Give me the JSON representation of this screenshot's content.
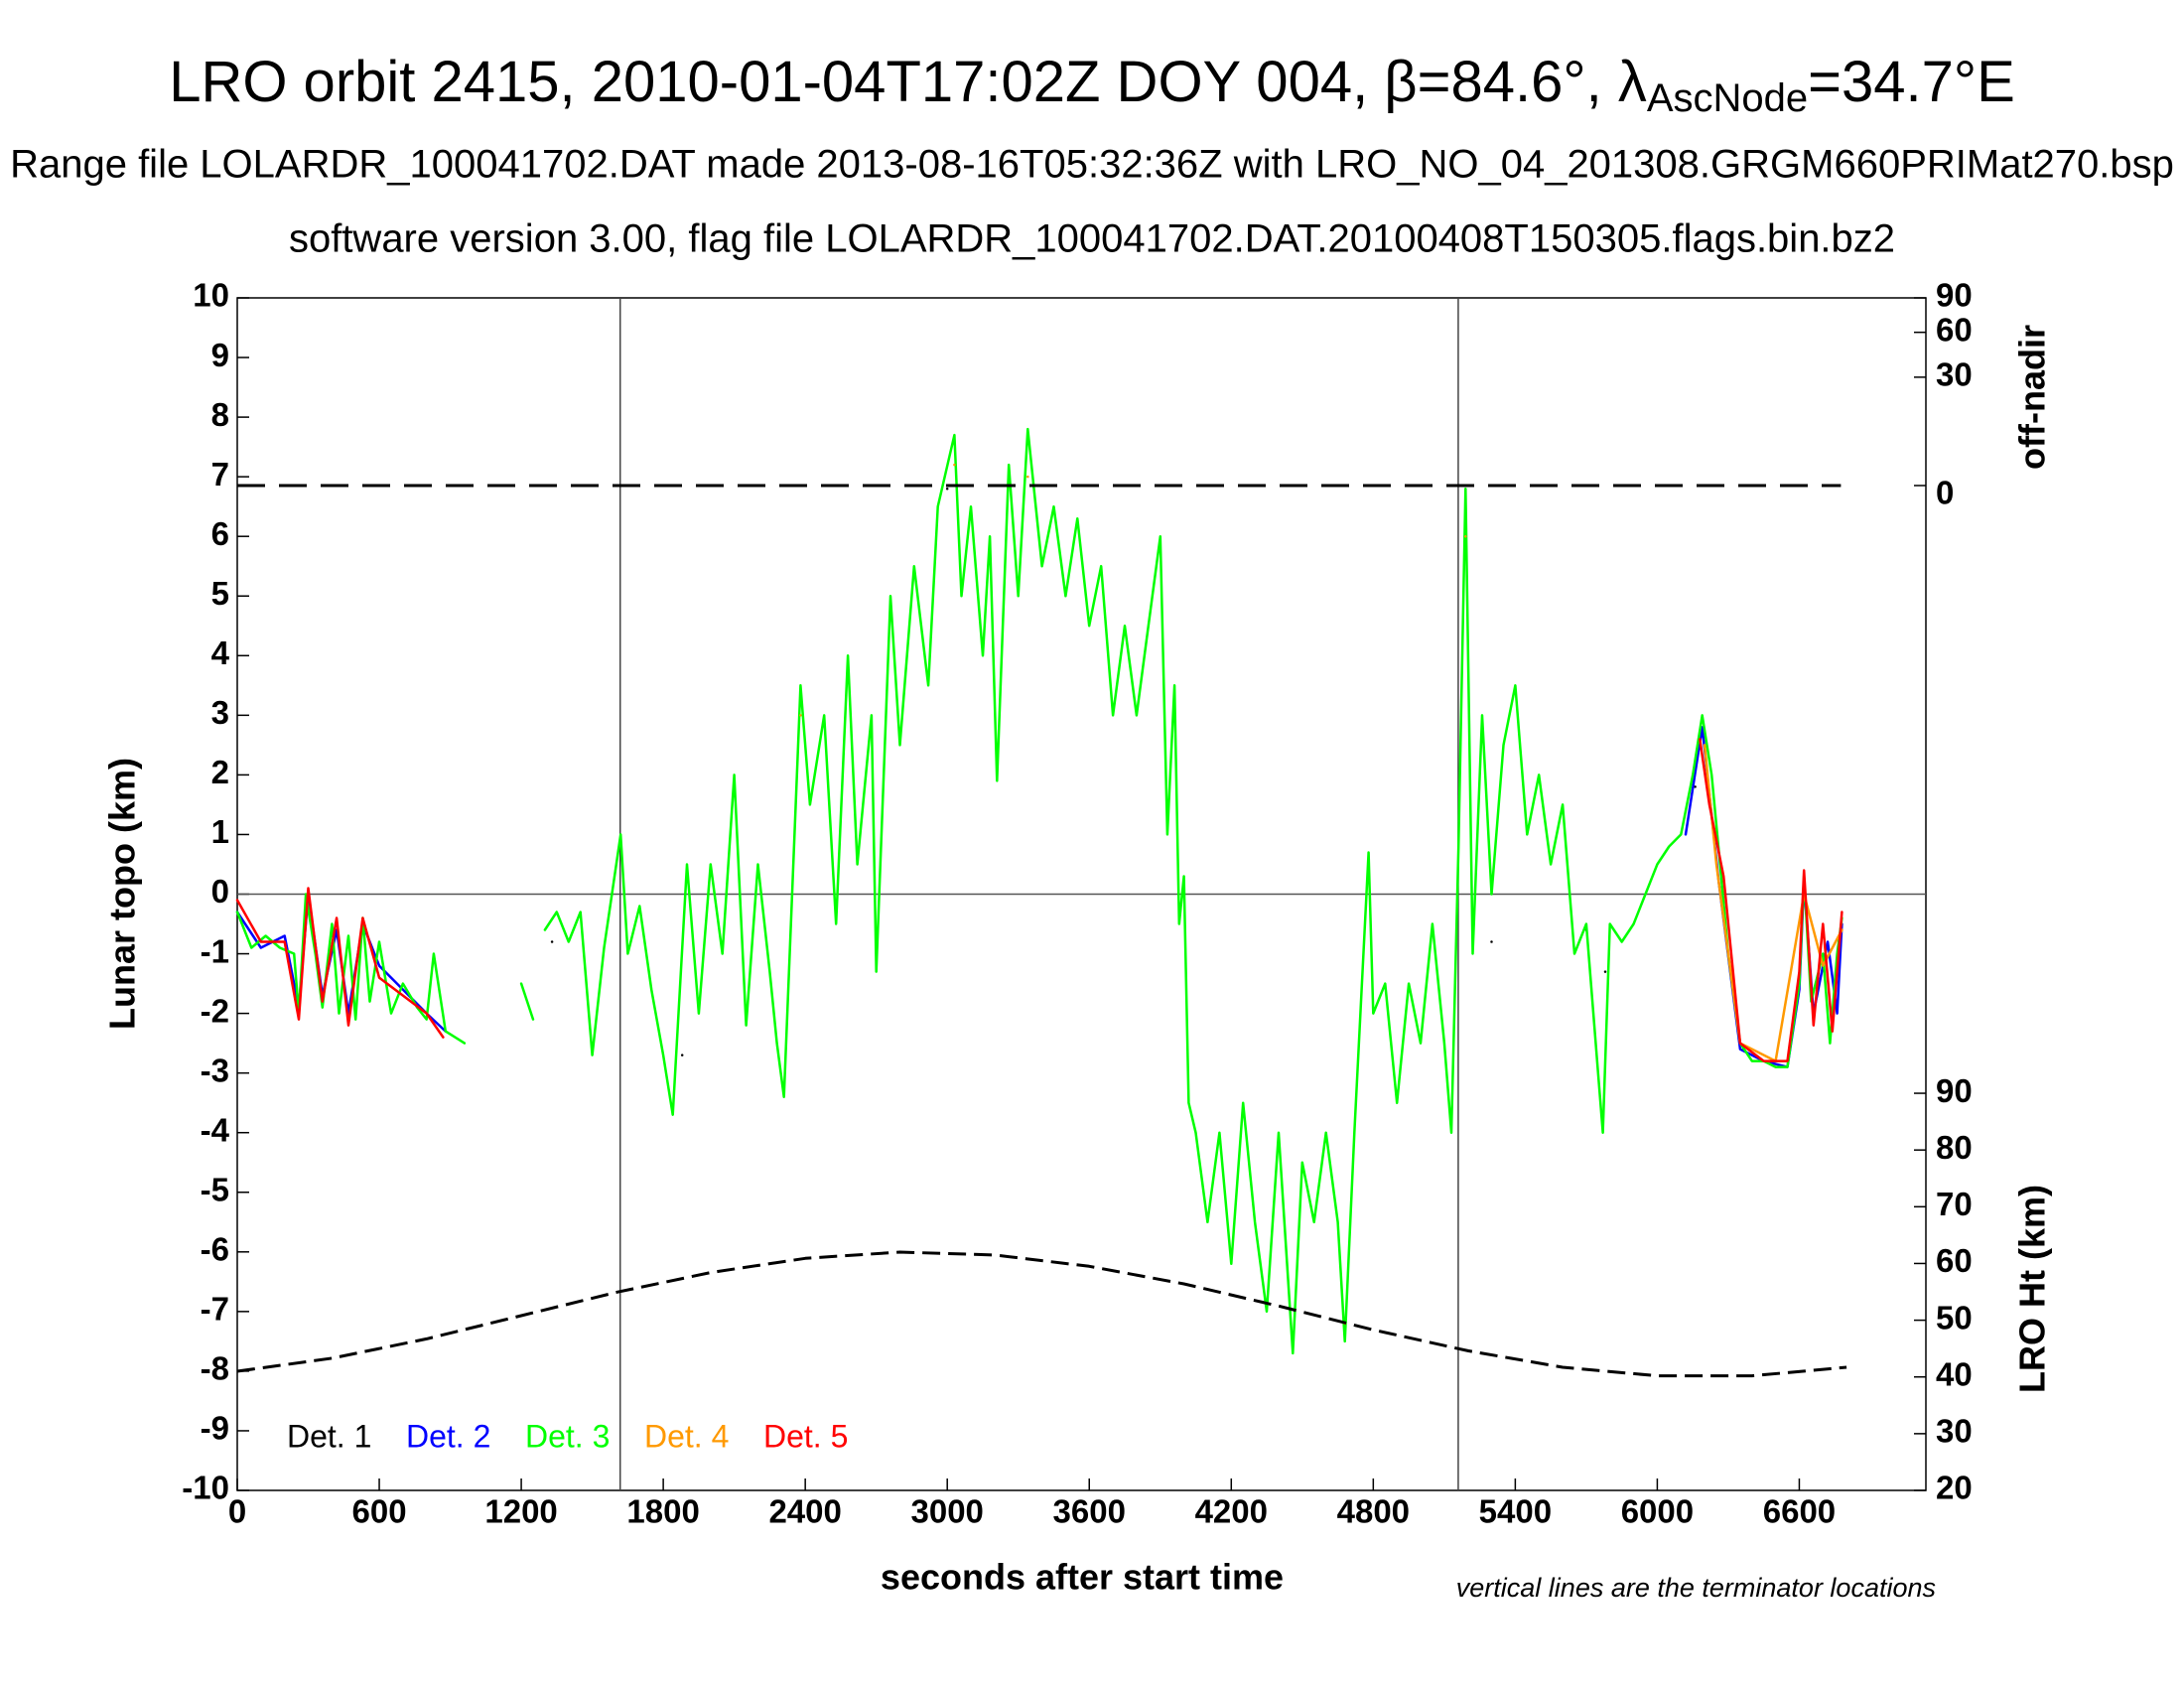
{
  "chart_data": {
    "type": "line",
    "title": {
      "main": "LRO orbit 2415, 2010-01-04T17:02Z DOY 004, β=84.6°, λ",
      "sub": "AscNode",
      "tail": "=34.7°E"
    },
    "subtitle": "Range file LOLARDR_100041702.DAT made 2013-08-16T05:32:36Z with LRO_NO_04_201308.GRGM660PRIMat270.bsp",
    "subtitle2": "software version 3.00, flag file LOLARDR_100041702.DAT.20100408T150305.flags.bin.bz2",
    "x_label": "seconds after start time",
    "y_label": "Lunar topo (km)",
    "y2_label": "LRO Ht (km)",
    "y3_label": "off-nadir",
    "note": "vertical lines are the terminator locations",
    "xlim": [
      0,
      7135
    ],
    "xticks": [
      0,
      600,
      1200,
      1800,
      2400,
      3000,
      3600,
      4200,
      4800,
      5400,
      6000,
      6600
    ],
    "ylim": [
      -10,
      10
    ],
    "yticks": [
      -10,
      -9,
      -8,
      -7,
      -6,
      -5,
      -4,
      -3,
      -2,
      -1,
      0,
      1,
      2,
      3,
      4,
      5,
      6,
      7,
      8,
      9,
      10
    ],
    "y2lim": [
      20,
      230.2
    ],
    "y2ticks": [
      20,
      30,
      40,
      50,
      60,
      70,
      80,
      90
    ],
    "y3lim": [
      0,
      90
    ],
    "y3ticks": [
      0,
      30,
      60,
      90
    ],
    "y3_scale": "sqrt",
    "terminators": [
      1618,
      5159
    ],
    "series": [
      {
        "name": "Det. 1",
        "color": "#000000",
        "x": [
          1330,
          1340,
          1880,
          1890,
          1900,
          1910,
          3000,
          3010,
          5300,
          5310,
          5700,
          5710,
          5780,
          5790,
          6160
        ],
        "values": [
          -0.8,
          null,
          -2.7,
          null,
          0.3,
          null,
          6.8,
          null,
          -0.8,
          null,
          -0.6,
          null,
          -1.3,
          null,
          1.8
        ]
      },
      {
        "name": "Det. 2",
        "color": "#0000ff",
        "x": [
          0,
          100,
          200,
          260,
          300,
          360,
          420,
          470,
          530,
          600,
          700,
          800,
          880,
          900,
          6120,
          6190,
          6260,
          6350,
          6450,
          6550,
          6600,
          6620,
          6660,
          6720,
          6760,
          6780
        ],
        "values": [
          -0.3,
          -0.9,
          -0.7,
          -1.9,
          0.0,
          -1.7,
          -0.6,
          -2.0,
          -0.5,
          -1.2,
          -1.6,
          -2.0,
          -2.3,
          null,
          1.0,
          2.8,
          0.2,
          -2.6,
          -2.8,
          -2.9,
          -1.6,
          0.2,
          -2.0,
          -0.8,
          -2.0,
          -0.5
        ]
      },
      {
        "name": "Det. 3",
        "color": "#00ff00",
        "x": [
          0,
          60,
          120,
          180,
          240,
          260,
          290,
          330,
          360,
          400,
          430,
          470,
          500,
          530,
          560,
          600,
          650,
          700,
          760,
          800,
          830,
          880,
          960,
          1000,
          1200,
          1250,
          1270,
          1300,
          1350,
          1400,
          1450,
          1500,
          1550,
          1620,
          1650,
          1700,
          1750,
          1800,
          1840,
          1900,
          1950,
          2000,
          2050,
          2100,
          2150,
          2200,
          2250,
          2280,
          2310,
          2380,
          2420,
          2480,
          2530,
          2580,
          2620,
          2680,
          2700,
          2760,
          2800,
          2860,
          2920,
          2960,
          3030,
          3060,
          3100,
          3150,
          3180,
          3210,
          3260,
          3300,
          3340,
          3400,
          3450,
          3500,
          3550,
          3600,
          3650,
          3700,
          3750,
          3800,
          3850,
          3900,
          3930,
          3960,
          3980,
          4000,
          4020,
          4050,
          4100,
          4150,
          4200,
          4250,
          4300,
          4350,
          4400,
          4460,
          4500,
          4550,
          4600,
          4650,
          4680,
          4720,
          4780,
          4800,
          4850,
          4900,
          4950,
          5000,
          5050,
          5100,
          5130,
          5160,
          5190,
          5220,
          5260,
          5300,
          5350,
          5400,
          5450,
          5500,
          5550,
          5600,
          5650,
          5700,
          5750,
          5770,
          5800,
          5850,
          5900,
          5950,
          6000,
          6050,
          6100,
          6150,
          6190,
          6230,
          6270,
          6300,
          6350,
          6400,
          6450,
          6500,
          6550,
          6600,
          6620,
          6650,
          6700,
          6730,
          6760,
          6780
        ],
        "values": [
          -0.3,
          -0.9,
          -0.7,
          -0.9,
          -1.0,
          -2.0,
          0.0,
          -1.0,
          -1.9,
          -0.5,
          -2.0,
          -0.7,
          -2.1,
          -0.4,
          -1.8,
          -0.8,
          -2.0,
          -1.5,
          -1.9,
          -2.1,
          -1.0,
          -2.3,
          -2.5,
          null,
          -1.5,
          -2.1,
          null,
          -0.6,
          -0.3,
          -0.8,
          -0.3,
          -2.7,
          -0.9,
          1.0,
          -1.0,
          -0.2,
          -1.6,
          -2.7,
          -3.7,
          0.5,
          -2.0,
          0.5,
          -1.0,
          2.0,
          -2.2,
          0.5,
          -1.3,
          -2.5,
          -3.4,
          3.5,
          1.5,
          3.0,
          -0.5,
          4.0,
          0.5,
          3.0,
          -1.3,
          5.0,
          2.5,
          5.5,
          3.5,
          6.5,
          7.7,
          5.0,
          6.5,
          4.0,
          6.0,
          1.9,
          7.2,
          5.0,
          7.8,
          5.5,
          6.5,
          5.0,
          6.3,
          4.5,
          5.5,
          3.0,
          4.5,
          3.0,
          4.5,
          6.0,
          1.0,
          3.5,
          -0.5,
          0.3,
          -3.5,
          -4.0,
          -5.5,
          -4.0,
          -6.2,
          -3.5,
          -5.5,
          -7.0,
          -4.0,
          -7.7,
          -4.5,
          -5.5,
          -4.0,
          -5.5,
          -7.5,
          -4.0,
          0.7,
          -2.0,
          -1.5,
          -3.5,
          -1.5,
          -2.5,
          -0.5,
          -2.5,
          -4.0,
          0.8,
          6.8,
          -1.0,
          3.0,
          0.0,
          2.5,
          3.5,
          1.0,
          2.0,
          0.5,
          1.5,
          -1.0,
          -0.5,
          -3.0,
          -4.0,
          -0.5,
          -0.8,
          -0.5,
          0.0,
          0.5,
          0.8,
          1.0,
          2.0,
          3.0,
          2.0,
          0.3,
          -1.0,
          -2.5,
          -2.8,
          -2.8,
          -2.9,
          -2.9,
          -1.5,
          0.3,
          -1.8,
          -1.0,
          -2.5,
          -1.0,
          -0.4
        ]
      },
      {
        "name": "Det. 4",
        "color": "#ff9900",
        "x": [
          2380,
          2400,
          3030,
          3050,
          3340,
          3360,
          4680,
          4700,
          5190,
          5210,
          6200,
          6250,
          6350,
          6500,
          6620,
          6700,
          6780
        ],
        "values": [
          3.0,
          null,
          7.2,
          null,
          7.0,
          null,
          -7.2,
          null,
          6.0,
          null,
          2.5,
          0.5,
          -2.5,
          -2.8,
          0.0,
          -1.2,
          -0.6
        ]
      },
      {
        "name": "Det. 5",
        "color": "#ff0000",
        "x": [
          0,
          100,
          200,
          260,
          300,
          360,
          420,
          470,
          530,
          600,
          700,
          800,
          870,
          900,
          6180,
          6220,
          6280,
          6350,
          6450,
          6550,
          6600,
          6620,
          6660,
          6700,
          6740,
          6780
        ],
        "values": [
          -0.1,
          -0.8,
          -0.8,
          -2.1,
          0.1,
          -1.8,
          -0.4,
          -2.2,
          -0.4,
          -1.4,
          -1.7,
          -2.0,
          -2.4,
          null,
          2.6,
          1.5,
          0.3,
          -2.5,
          -2.8,
          -2.8,
          -1.3,
          0.4,
          -2.2,
          -0.5,
          -2.3,
          -0.3
        ]
      }
    ],
    "lro_height": {
      "axis": "y2",
      "color": "#000000",
      "x": [
        0,
        400,
        800,
        1200,
        1600,
        2000,
        2400,
        2800,
        3200,
        3600,
        4000,
        4400,
        4800,
        5200,
        5600,
        6000,
        6400,
        6800
      ],
      "values": [
        41.0,
        43.3,
        46.7,
        50.8,
        54.9,
        58.4,
        60.9,
        62.0,
        61.5,
        59.5,
        56.4,
        52.5,
        48.3,
        44.6,
        41.7,
        40.2,
        40.2,
        41.7
      ]
    },
    "off_nadir": {
      "axis": "y3",
      "color": "#000000",
      "x": [
        0,
        6776
      ],
      "values": [
        0,
        0
      ]
    }
  }
}
